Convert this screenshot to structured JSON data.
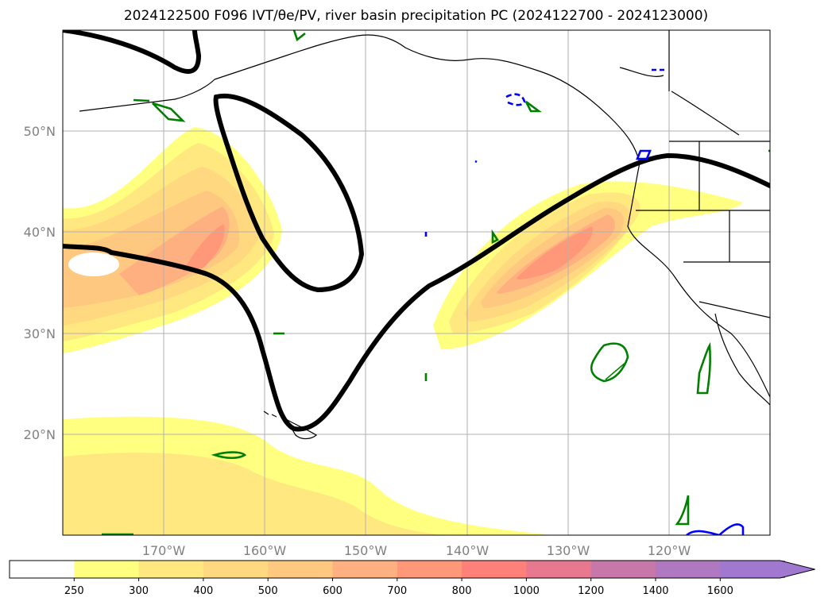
{
  "title": "2024122500 F096 IVT/θe/PV, river basin precipitation PC (2024122700 - 2024123000)",
  "map": {
    "lon_labels": [
      "170°W",
      "160°W",
      "150°W",
      "140°W",
      "130°W",
      "120°W"
    ],
    "lat_labels": [
      "50°N",
      "40°N",
      "30°N",
      "20°N"
    ],
    "grid": true
  },
  "colorbar": {
    "levels": [
      "250",
      "300",
      "400",
      "500",
      "600",
      "700",
      "800",
      "1000",
      "1200",
      "1400",
      "1600"
    ],
    "colors": [
      "#ffffff",
      "#ffff80",
      "#ffe880",
      "#ffd880",
      "#ffc880",
      "#ffb080",
      "#ff9878",
      "#ff8078",
      "#e87890",
      "#c878a8",
      "#b078c0",
      "#a078d0"
    ],
    "extend": "max"
  },
  "contour_colors": {
    "theta_e": "#000000",
    "pv_positive": "#008000",
    "pv_negative": "#0000ff"
  }
}
